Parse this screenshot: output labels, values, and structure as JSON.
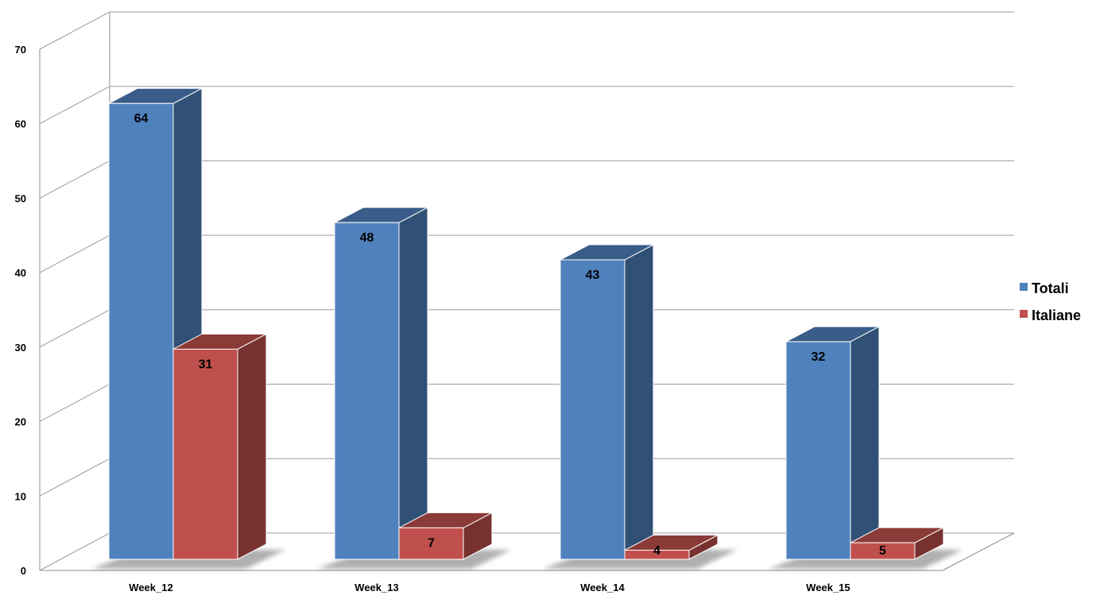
{
  "chart_data": {
    "type": "bar",
    "three_d": true,
    "categories": [
      "Week_12",
      "Week_13",
      "Week_14",
      "Week_15"
    ],
    "series": [
      {
        "name": "Totali",
        "values": [
          64,
          48,
          43,
          32
        ],
        "color": "#4F81BD"
      },
      {
        "name": "Italiane",
        "values": [
          31,
          7,
          4,
          5
        ],
        "color": "#C0504D"
      }
    ],
    "ylim": [
      0,
      70
    ],
    "yticks": [
      "0",
      "10",
      "20",
      "30",
      "40",
      "50",
      "60",
      "70"
    ],
    "grid": true,
    "legend": "right",
    "data_labels": true
  }
}
